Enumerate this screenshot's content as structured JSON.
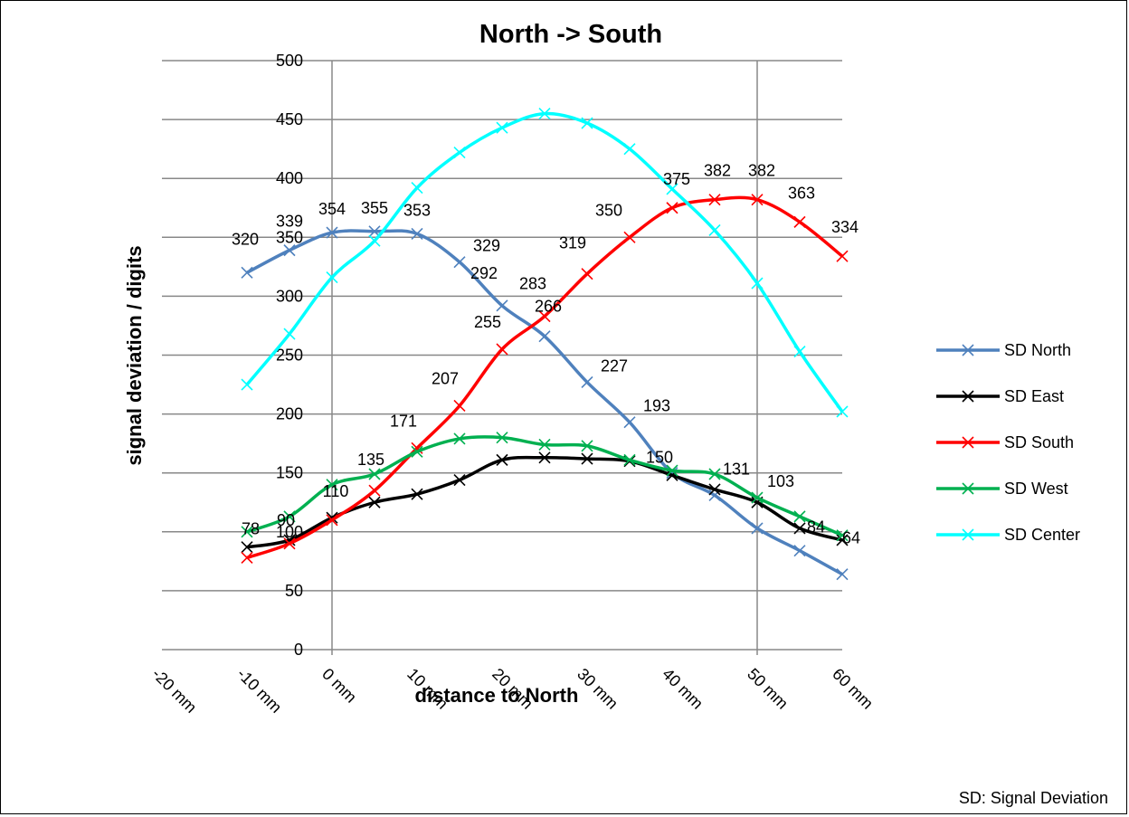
{
  "chart_data": {
    "type": "line",
    "title": "North -> South",
    "xlabel": "distance to North",
    "ylabel": "signal deviation / digits",
    "footnote": "SD: Signal Deviation",
    "xlim": [
      -20,
      60
    ],
    "ylim": [
      0,
      500
    ],
    "x_ticks": [
      -20,
      -10,
      0,
      10,
      20,
      30,
      40,
      50,
      60
    ],
    "x_tick_labels": [
      "-20 mm",
      "-10 mm",
      "0 mm",
      "10 mm",
      "20 mm",
      "30 mm",
      "40 mm",
      "50 mm",
      "60 mm"
    ],
    "y_ticks": [
      0,
      50,
      100,
      150,
      200,
      250,
      300,
      350,
      400,
      450,
      500
    ],
    "y_tick_labels": [
      "0",
      "50",
      "100",
      "150",
      "200",
      "250",
      "300",
      "350",
      "400",
      "450",
      "500"
    ],
    "grid": "horizontal major gridlines; vertical lines at 0 mm and 50 mm",
    "legend_position": "right",
    "x": [
      -10,
      -5,
      0,
      5,
      10,
      15,
      20,
      25,
      30,
      35,
      40,
      45,
      50,
      55,
      60
    ],
    "series": [
      {
        "name": "SD North",
        "color": "#4F81BD",
        "values": [
          320,
          339,
          354,
          355,
          353,
          329,
          292,
          266,
          227,
          193,
          150,
          131,
          103,
          84,
          64
        ]
      },
      {
        "name": "SD East",
        "color": "#000000",
        "values": [
          87,
          93,
          112,
          125,
          132,
          144,
          161,
          163,
          162,
          160,
          148,
          136,
          125,
          103,
          93
        ]
      },
      {
        "name": "SD South",
        "color": "#FF0000",
        "values": [
          78,
          90,
          110,
          135,
          171,
          207,
          255,
          283,
          319,
          350,
          375,
          382,
          382,
          363,
          334
        ]
      },
      {
        "name": "SD West",
        "color": "#00B050",
        "values": [
          100,
          113,
          140,
          149,
          168,
          179,
          180,
          174,
          173,
          161,
          152,
          149,
          129,
          113,
          97
        ]
      },
      {
        "name": "SD Center",
        "color": "#00FFFF",
        "values": [
          225,
          268,
          316,
          347,
          392,
          422,
          443,
          455,
          447,
          425,
          391,
          356,
          311,
          253,
          202
        ]
      }
    ],
    "data_labels": [
      {
        "series": "SD North",
        "values": [
          "320",
          "339",
          "354",
          "355",
          "353",
          "329",
          "292",
          "266",
          "227",
          "193",
          "150",
          "131",
          "103",
          "84",
          "64"
        ]
      },
      {
        "series": "SD South",
        "values": [
          "78",
          "90",
          "110",
          "135",
          "171",
          "207",
          "255",
          "283",
          "319",
          "350",
          "375",
          "382",
          "382",
          "363",
          "334"
        ]
      }
    ]
  }
}
